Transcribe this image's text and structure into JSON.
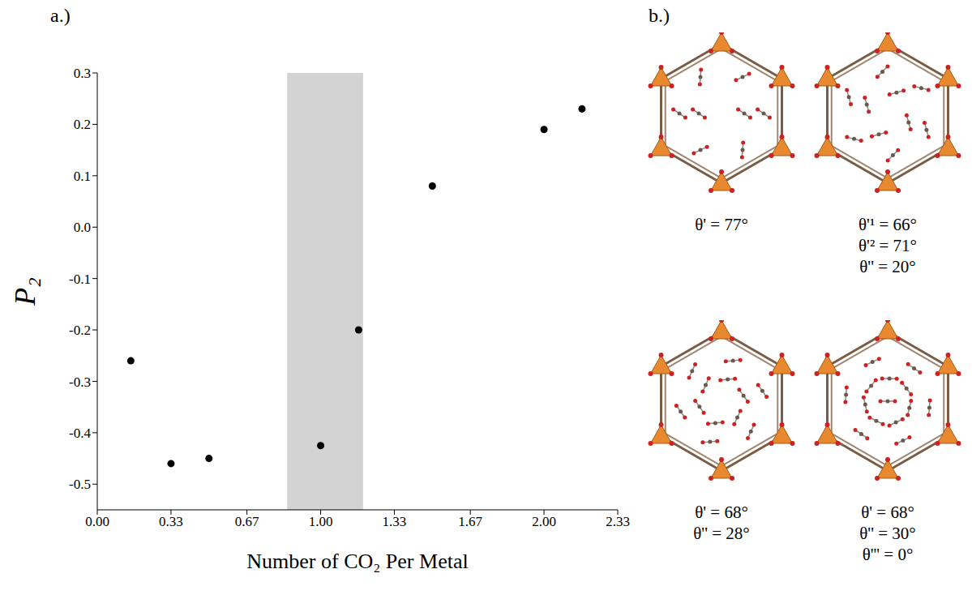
{
  "chart_data": {
    "type": "scatter",
    "panel_label": "a.)",
    "x_label": "Number of CO₂ Per Metal",
    "y_label": "P₂",
    "x": [
      0.15,
      0.33,
      0.5,
      1.0,
      1.17,
      1.5,
      2.0,
      2.17
    ],
    "values": [
      -0.26,
      -0.46,
      -0.45,
      -0.425,
      -0.2,
      0.08,
      0.19,
      0.23
    ],
    "color": "#000000",
    "marker": "circle",
    "xlim": [
      0,
      2.33
    ],
    "xticks": [
      {
        "value": 0,
        "label": "0.00"
      },
      0.33,
      0.67,
      {
        "value": 1,
        "label": "1.00"
      },
      1.33,
      1.67,
      {
        "value": 2,
        "label": "2.00"
      },
      2.33
    ],
    "ylim": [
      -0.55,
      0.3
    ],
    "yticks": [
      -0.5,
      -0.4,
      -0.3,
      -0.2,
      -0.1,
      {
        "value": 0,
        "label": "0.0"
      },
      0.1,
      0.2,
      0.3
    ],
    "shaded_region": {
      "x": [
        0.85,
        1.19
      ],
      "color": "#d3d3d3"
    },
    "grid": false
  },
  "panel_b": {
    "label": "b.)",
    "structures": [
      {
        "angles": [
          "θ' = 77°"
        ]
      },
      {
        "angles": [
          "θ'¹ = 66°",
          "θ'² = 71°",
          "θ'' = 20°"
        ]
      },
      {
        "angles": [
          "θ' = 68°",
          "θ'' = 28°"
        ]
      },
      {
        "angles": [
          "θ' = 68°",
          "θ'' = 30°",
          "θ''' = 0°"
        ]
      }
    ]
  }
}
